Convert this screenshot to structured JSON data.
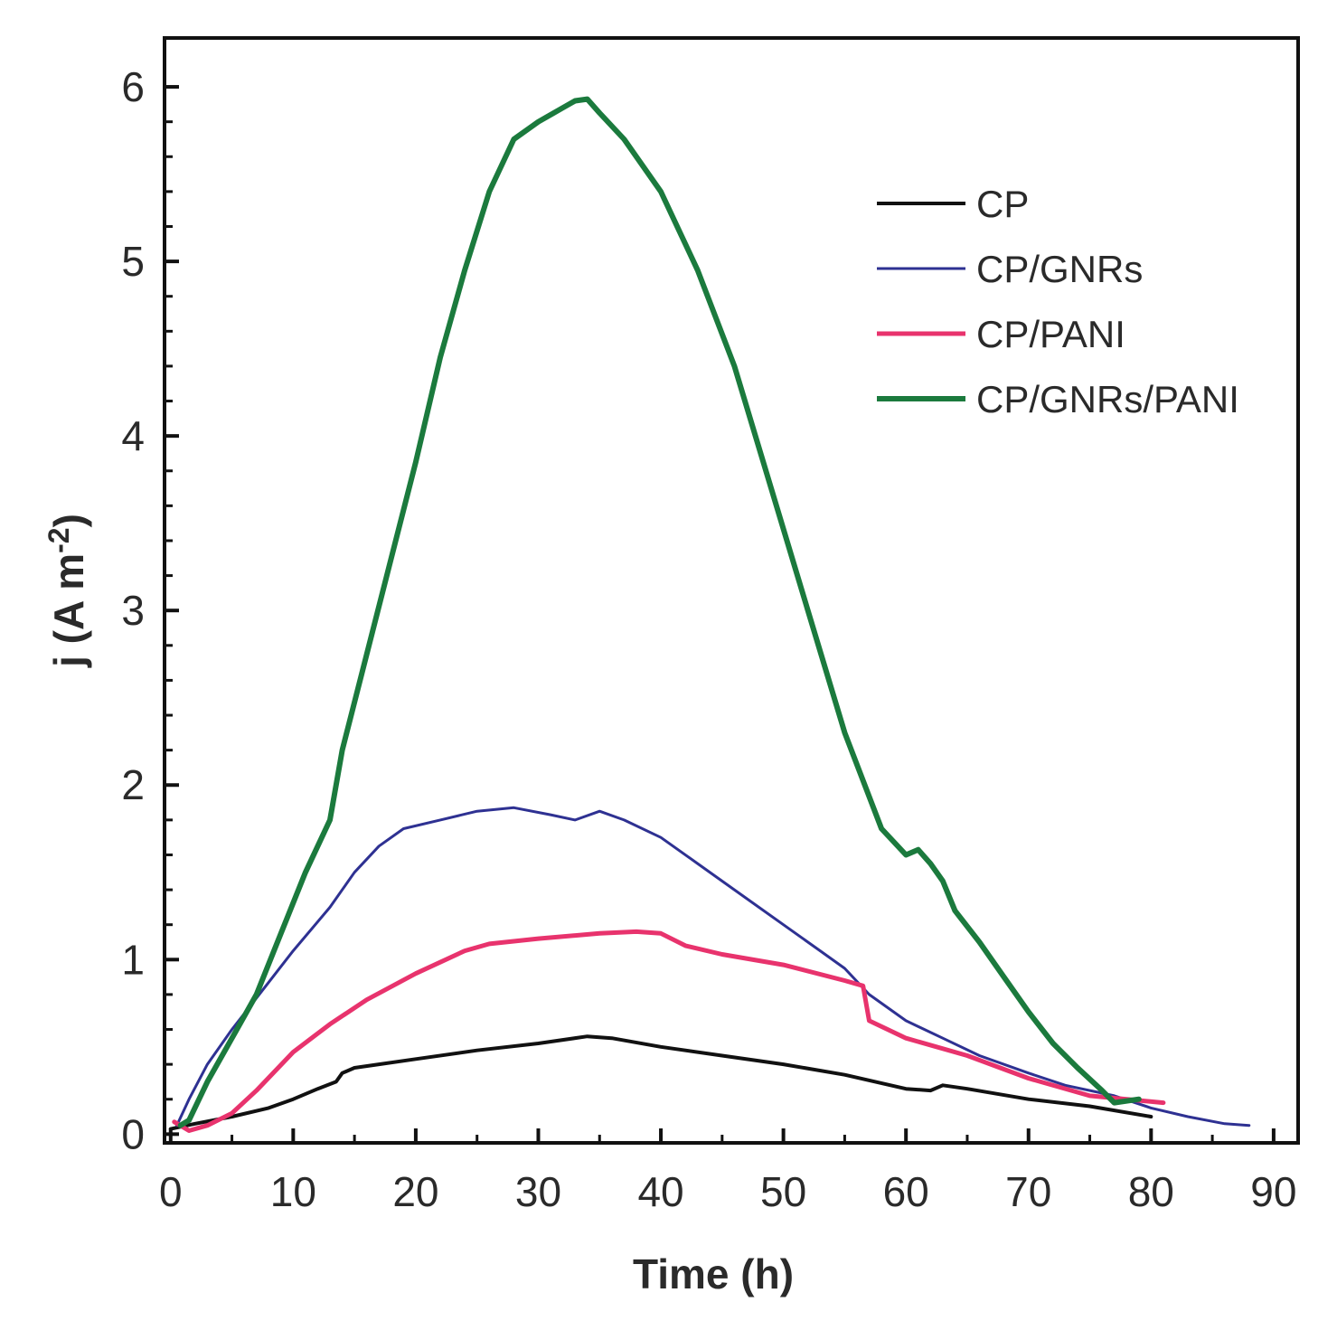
{
  "chart_data": {
    "type": "line",
    "title": "",
    "xlabel": "Time (h)",
    "ylabel_main": "j (A m",
    "ylabel_exp": "-2",
    "ylabel_close": ")",
    "xlim": [
      -0.5,
      92
    ],
    "ylim": [
      -0.05,
      6.28
    ],
    "xticks": [
      0,
      10,
      20,
      30,
      40,
      50,
      60,
      70,
      80,
      90
    ],
    "xtick_labels": [
      "0",
      "10",
      "20",
      "30",
      "40",
      "50",
      "60",
      "70",
      "80",
      "90"
    ],
    "yticks": [
      0,
      1,
      2,
      3,
      4,
      5,
      6
    ],
    "ytick_labels": [
      "0",
      "1",
      "2",
      "3",
      "4",
      "5",
      "6"
    ],
    "legend_position": "top-right",
    "series": [
      {
        "name": "CP",
        "color": "#111111",
        "x": [
          0,
          2,
          5,
          8,
          10,
          12,
          13.5,
          14,
          15,
          17,
          20,
          25,
          30,
          34,
          36,
          40,
          45,
          50,
          55,
          60,
          62,
          63,
          65,
          70,
          75,
          80
        ],
        "y": [
          0.03,
          0.06,
          0.1,
          0.15,
          0.2,
          0.26,
          0.3,
          0.35,
          0.38,
          0.4,
          0.43,
          0.48,
          0.52,
          0.56,
          0.55,
          0.5,
          0.45,
          0.4,
          0.34,
          0.26,
          0.25,
          0.28,
          0.26,
          0.2,
          0.16,
          0.1
        ]
      },
      {
        "name": "CP/GNRs",
        "color": "#2e3192",
        "x": [
          0.5,
          1.5,
          3,
          5,
          7,
          10,
          13,
          15,
          17,
          19,
          22,
          25,
          28,
          31,
          33,
          35,
          37,
          40,
          43,
          46,
          50,
          53,
          55,
          57,
          60,
          63,
          66,
          70,
          73,
          77,
          80,
          83,
          86,
          88
        ],
        "y": [
          0.05,
          0.2,
          0.4,
          0.6,
          0.78,
          1.05,
          1.3,
          1.5,
          1.65,
          1.75,
          1.8,
          1.85,
          1.87,
          1.83,
          1.8,
          1.85,
          1.8,
          1.7,
          1.55,
          1.4,
          1.2,
          1.05,
          0.95,
          0.8,
          0.65,
          0.55,
          0.45,
          0.35,
          0.28,
          0.22,
          0.15,
          0.1,
          0.06,
          0.05
        ]
      },
      {
        "name": "CP/PANI",
        "color": "#e8336d",
        "x": [
          0.3,
          1.5,
          3,
          5,
          7,
          10,
          13,
          16,
          20,
          24,
          26,
          30,
          35,
          38,
          40,
          42,
          45,
          50,
          55,
          56.5,
          57,
          60,
          65,
          70,
          75,
          78,
          81
        ],
        "y": [
          0.07,
          0.02,
          0.05,
          0.12,
          0.25,
          0.47,
          0.63,
          0.77,
          0.92,
          1.05,
          1.09,
          1.12,
          1.15,
          1.16,
          1.15,
          1.08,
          1.03,
          0.97,
          0.88,
          0.85,
          0.65,
          0.55,
          0.45,
          0.32,
          0.22,
          0.2,
          0.18
        ]
      },
      {
        "name": "CP/GNRs/PANI",
        "color": "#1b7a3d",
        "x": [
          0.8,
          1.5,
          3,
          5,
          7,
          9,
          11,
          13,
          14,
          16,
          18,
          20,
          22,
          24,
          26,
          28,
          30,
          32,
          33,
          34,
          35,
          37,
          40,
          43,
          46,
          49,
          52,
          55,
          58,
          60,
          61,
          62,
          63,
          64,
          66,
          68,
          70,
          72,
          74,
          76,
          77,
          79
        ],
        "y": [
          0.05,
          0.08,
          0.3,
          0.55,
          0.8,
          1.15,
          1.5,
          1.8,
          2.2,
          2.75,
          3.3,
          3.85,
          4.45,
          4.95,
          5.4,
          5.7,
          5.8,
          5.88,
          5.92,
          5.93,
          5.85,
          5.7,
          5.4,
          4.95,
          4.4,
          3.7,
          3.0,
          2.3,
          1.75,
          1.6,
          1.63,
          1.55,
          1.45,
          1.28,
          1.1,
          0.9,
          0.7,
          0.52,
          0.38,
          0.25,
          0.18,
          0.2
        ]
      }
    ]
  }
}
